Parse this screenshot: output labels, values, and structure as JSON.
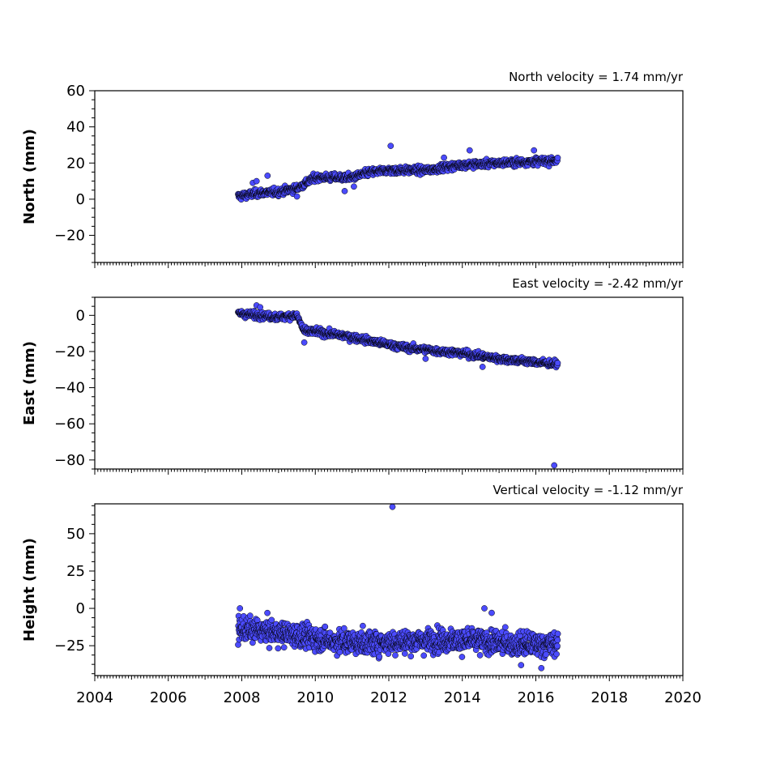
{
  "chart_data": [
    {
      "type": "scatter",
      "title": "North velocity = 1.74 mm/yr",
      "ylabel": "North (mm)",
      "xlim": [
        2004,
        2020
      ],
      "ylim": [
        -35,
        60
      ],
      "yticks": [
        -20,
        0,
        20,
        40,
        60
      ],
      "yticklabels": [
        "−20",
        "0",
        "20",
        "40",
        "60"
      ],
      "xticklabels": [],
      "series": [
        {
          "trend": {
            "x": [
              2007.9,
              2008.5,
              2009.0,
              2009.5,
              2010.0,
              2011.0,
              2011.5,
              2012.0,
              2013.0,
              2014.0,
              2015.0,
              2016.6
            ],
            "y": [
              1.5,
              3.5,
              4,
              6,
              12,
              12,
              15,
              16,
              16,
              19,
              20,
              21.5
            ]
          },
          "outliers": [
            {
              "x": 2008.3,
              "y": 9
            },
            {
              "x": 2008.4,
              "y": 10
            },
            {
              "x": 2008.7,
              "y": 13
            },
            {
              "x": 2009.5,
              "y": 1.5
            },
            {
              "x": 2010.8,
              "y": 4.5
            },
            {
              "x": 2011.05,
              "y": 7
            },
            {
              "x": 2012.05,
              "y": 29.5
            },
            {
              "x": 2013.5,
              "y": 23
            },
            {
              "x": 2014.2,
              "y": 27
            },
            {
              "x": 2015.95,
              "y": 27
            }
          ]
        }
      ]
    },
    {
      "type": "scatter",
      "title": "East velocity = -2.42 mm/yr",
      "ylabel": "East (mm)",
      "xlim": [
        2004,
        2020
      ],
      "ylim": [
        -85,
        10
      ],
      "yticks": [
        -80,
        -60,
        -40,
        -20,
        0
      ],
      "yticklabels": [
        "−80",
        "−60",
        "−40",
        "−20",
        "0"
      ],
      "xticklabels": [],
      "series": [
        {
          "trend": {
            "x": [
              2007.9,
              2008.5,
              2009.0,
              2009.5,
              2009.7,
              2010.0,
              2011.0,
              2011.7,
              2012.5,
              2013.0,
              2014.0,
              2015.0,
              2016.6
            ],
            "y": [
              1,
              0,
              -1,
              0,
              -9,
              -9,
              -12,
              -15,
              -18,
              -19,
              -21,
              -24,
              -27
            ]
          },
          "outliers": [
            {
              "x": 2008.4,
              "y": 5.5
            },
            {
              "x": 2008.5,
              "y": 4.5
            },
            {
              "x": 2009.7,
              "y": -15
            },
            {
              "x": 2013.0,
              "y": -24
            },
            {
              "x": 2014.55,
              "y": -28.5
            },
            {
              "x": 2016.5,
              "y": -83
            }
          ]
        }
      ]
    },
    {
      "type": "scatter",
      "title": "Vertical velocity = -1.12 mm/yr",
      "ylabel": "Height (mm)",
      "xlim": [
        2004,
        2020
      ],
      "ylim": [
        -45,
        70
      ],
      "yticks": [
        -25,
        0,
        25,
        50
      ],
      "yticklabels": [
        "−25",
        "0",
        "25",
        "50"
      ],
      "xticks": [
        2004,
        2006,
        2008,
        2010,
        2012,
        2014,
        2016,
        2018,
        2020
      ],
      "xticklabels": [
        "2004",
        "2006",
        "2008",
        "2010",
        "2012",
        "2014",
        "2016",
        "2018",
        "2020"
      ],
      "series": [
        {
          "trend": {
            "x": [
              2007.9,
              2008.5,
              2009.5,
              2010.5,
              2011.5,
              2012.5,
              2013.5,
              2014.5,
              2015.5,
              2016.6
            ],
            "y": [
              -14,
              -15,
              -18,
              -22,
              -23,
              -22,
              -21,
              -22,
              -24,
              -24
            ]
          },
          "outliers": [
            {
              "x": 2007.95,
              "y": 0
            },
            {
              "x": 2012.1,
              "y": 68
            },
            {
              "x": 2014.6,
              "y": 0
            },
            {
              "x": 2014.8,
              "y": -3
            },
            {
              "x": 2016.15,
              "y": -40
            },
            {
              "x": 2015.6,
              "y": -38
            }
          ]
        }
      ]
    }
  ],
  "colors": {
    "marker_fill": "#4b4bff",
    "marker_edge": "#000000",
    "axes": "#000000"
  }
}
